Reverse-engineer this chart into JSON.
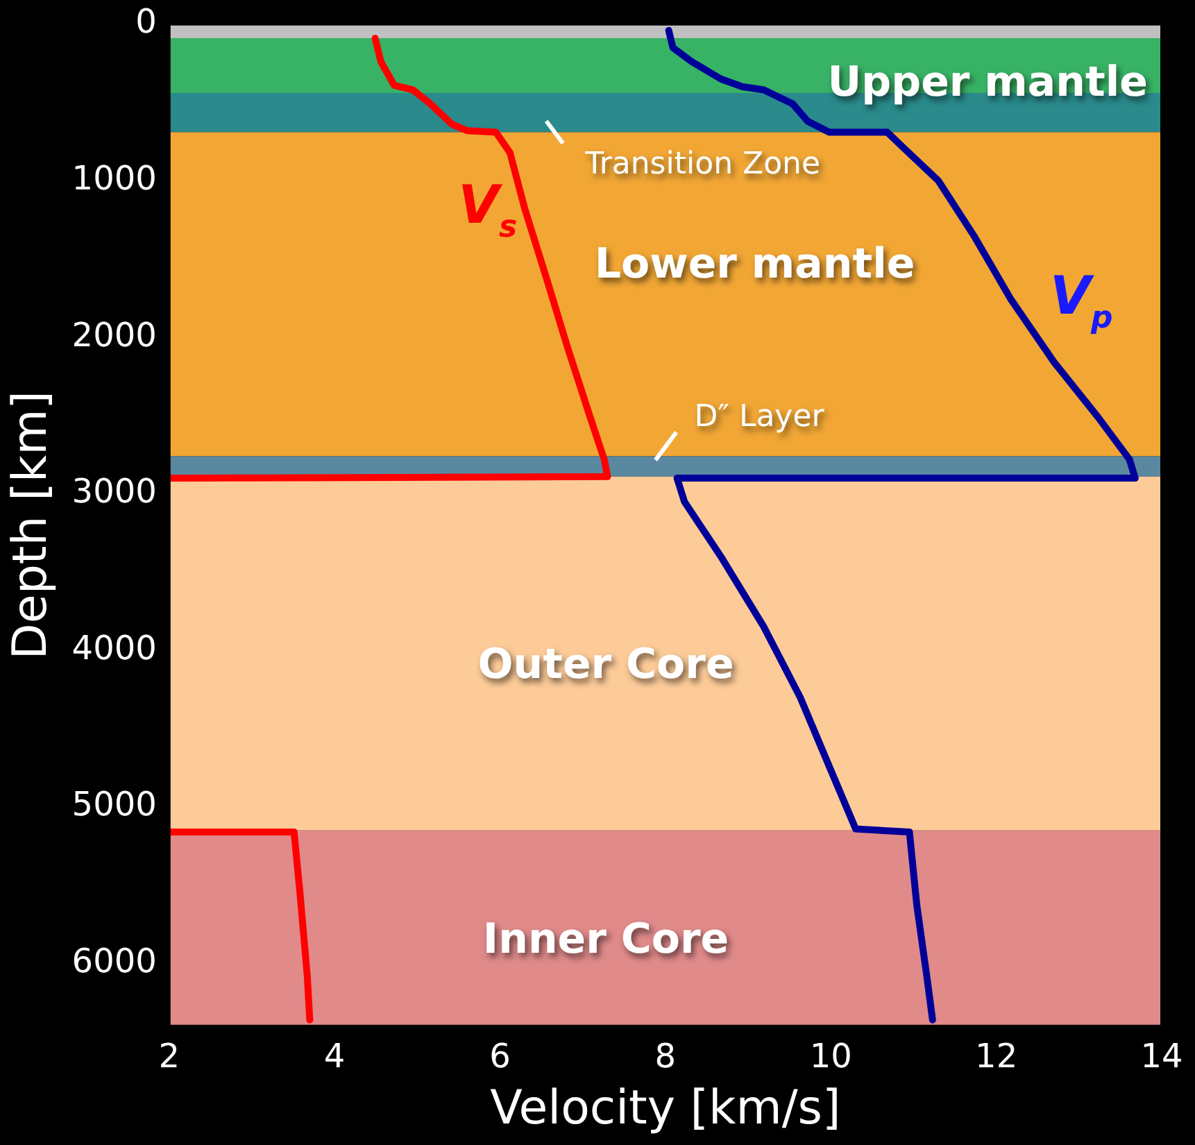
{
  "chart_data": {
    "type": "line",
    "xlabel": "Velocity [km/s]",
    "ylabel": "Depth [km]",
    "xlim": [
      2,
      14
    ],
    "xticks": [
      2,
      4,
      6,
      8,
      10,
      12,
      14
    ],
    "ylim": [
      6400,
      0
    ],
    "yticks": [
      0,
      1000,
      2000,
      3000,
      4000,
      5000,
      6000
    ],
    "grid": false,
    "legend": false,
    "marker": "none",
    "line_style": "solid",
    "series": [
      {
        "name": "V$_{s}$",
        "color": "#ff0000",
        "x": [
          4.49,
          4.56,
          4.72,
          4.95,
          5.16,
          5.42,
          5.6,
          5.95,
          6.12,
          6.3,
          6.56,
          6.82,
          7.09,
          7.26,
          7.3,
          2,
          null,
          2,
          3.51,
          3.58,
          3.67,
          3.7
        ],
        "values": [
          90,
          240,
          390,
          420,
          510,
          640,
          680,
          690,
          820,
          1180,
          1620,
          2070,
          2510,
          2780,
          2890,
          2900,
          null,
          5160,
          5160,
          5540,
          6080,
          6360
        ]
      },
      {
        "name": "V$_{p}$",
        "color": "#000099",
        "x": [
          8.04,
          8.09,
          8.32,
          8.67,
          8.93,
          9.19,
          9.54,
          9.72,
          9.98,
          10.68,
          10.86,
          11.3,
          11.74,
          12.18,
          12.7,
          13.23,
          13.61,
          13.68,
          8.14,
          8.23,
          8.67,
          9.19,
          9.63,
          9.98,
          10.3,
          10.95,
          11.04,
          11.16,
          11.23
        ],
        "values": [
          40,
          150,
          240,
          350,
          400,
          420,
          510,
          620,
          690,
          690,
          780,
          1000,
          1360,
          1760,
          2160,
          2510,
          2780,
          2900,
          2900,
          3050,
          3400,
          3850,
          4300,
          4740,
          5140,
          5160,
          5630,
          6080,
          6360
        ]
      }
    ],
    "bands": [
      {
        "axis": "y",
        "from": 0,
        "to": 90,
        "color": "#c0c0c0"
      },
      {
        "axis": "y",
        "from": 90,
        "to": 440,
        "color": "#38b366",
        "label": "Upper mantle"
      },
      {
        "axis": "y",
        "from": 440,
        "to": 690,
        "color": "#2a8a8c",
        "label": "Transition Zone"
      },
      {
        "axis": "y",
        "from": 690,
        "to": 2760,
        "color": "#f2a735",
        "label": "Lower mantle"
      },
      {
        "axis": "y",
        "from": 2760,
        "to": 2890,
        "color": "#5a88a0",
        "label": "D″ Layer"
      },
      {
        "axis": "y",
        "from": 2890,
        "to": 5150,
        "color": "#fdcb98",
        "label": "Outer Core"
      },
      {
        "axis": "y",
        "from": 5150,
        "to": 6400,
        "color": "#e08a8a",
        "label": "Inner Core"
      }
    ]
  }
}
